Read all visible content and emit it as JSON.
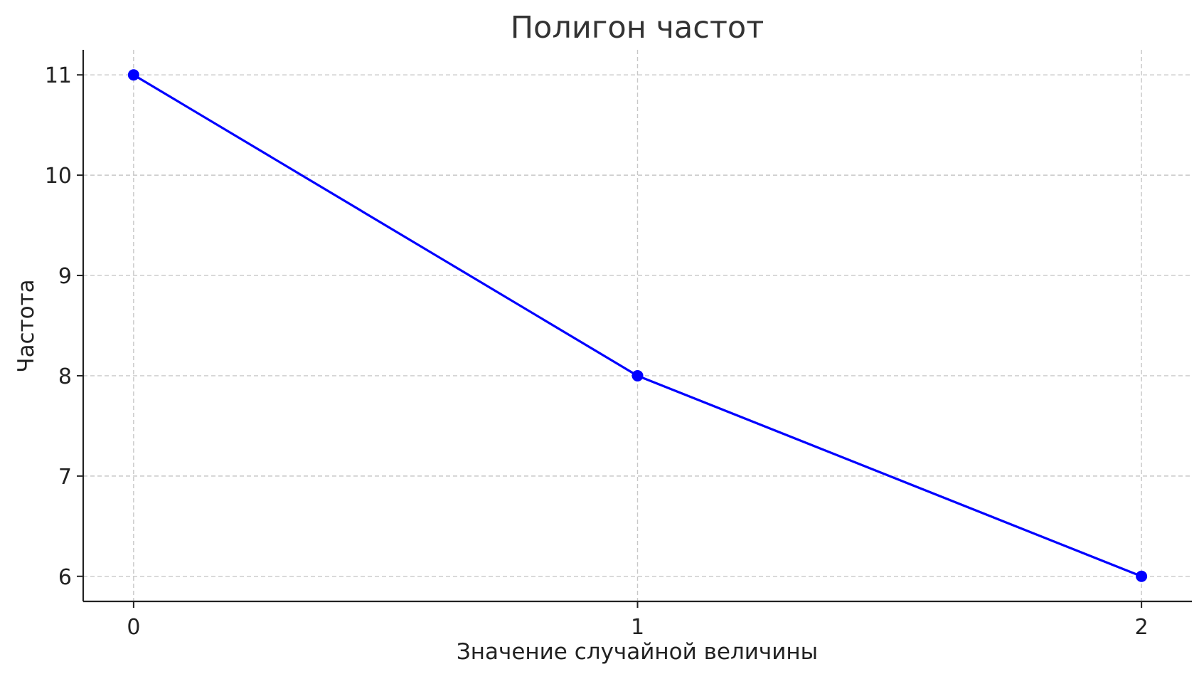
{
  "chart_data": {
    "type": "line",
    "title": "Полигон частот",
    "xlabel": "Значение случайной величины",
    "ylabel": "Частота",
    "x": [
      0,
      1,
      2
    ],
    "series": [
      {
        "values": [
          11,
          8,
          6
        ],
        "color": "#0000ff",
        "marker": "circle"
      }
    ],
    "xticks": [
      "0",
      "1",
      "2"
    ],
    "yticks": [
      "6",
      "7",
      "8",
      "9",
      "10",
      "11"
    ],
    "xlim": [
      -0.1,
      2.1
    ],
    "ylim": [
      5.75,
      11.25
    ],
    "grid": true,
    "grid_style": "dashed"
  }
}
